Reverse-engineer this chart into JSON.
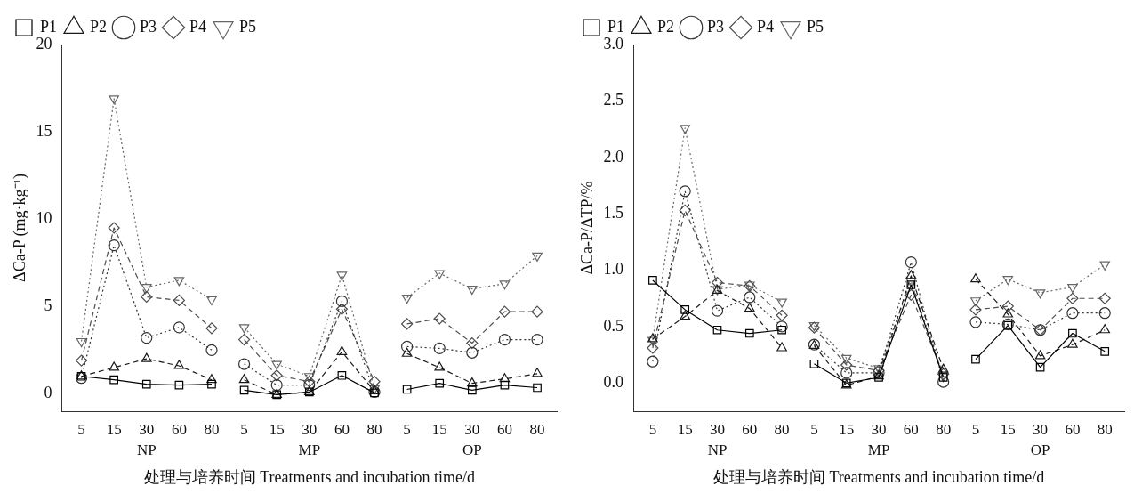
{
  "chart_data": [
    {
      "type": "line",
      "ylabel": "ΔCa-P (mg·kg⁻¹)",
      "xlabel": "处理与培养时间 Treatments and incubation time/d",
      "categories": [
        "5",
        "15",
        "30",
        "60",
        "80",
        "5",
        "15",
        "30",
        "60",
        "80",
        "5",
        "15",
        "30",
        "60",
        "80"
      ],
      "annotations": [
        "NP",
        "MP",
        "OP"
      ],
      "ylim": [
        -1,
        20
      ],
      "yticks": [
        0,
        5,
        10,
        15,
        20
      ],
      "legend": "top",
      "grid": false,
      "series": [
        {
          "name": "P1",
          "color": "#000000",
          "marker": "square",
          "line_style": "solid",
          "values": [
            1.0,
            0.8,
            0.55,
            0.5,
            0.55,
            0.2,
            -0.05,
            0.1,
            1.05,
            0.05,
            0.25,
            0.6,
            0.2,
            0.5,
            0.35
          ]
        },
        {
          "name": "P2",
          "color": "#1a1a1a",
          "marker": "triangle",
          "line_style": "dashed",
          "values": [
            1.0,
            1.5,
            2.0,
            1.6,
            0.8,
            0.8,
            -0.05,
            0.1,
            2.4,
            0.15,
            2.3,
            1.5,
            0.6,
            0.85,
            1.15
          ]
        },
        {
          "name": "P3",
          "color": "#333333",
          "marker": "circle",
          "line_style": "dotted",
          "values": [
            0.9,
            8.5,
            3.2,
            3.8,
            2.5,
            1.7,
            0.5,
            0.5,
            5.3,
            0.1,
            2.7,
            2.6,
            2.35,
            3.1,
            3.1
          ]
        },
        {
          "name": "P4",
          "color": "#4d4d4d",
          "marker": "diamond",
          "line_style": "dashed",
          "values": [
            1.9,
            9.5,
            5.55,
            5.35,
            3.75,
            3.1,
            1.05,
            0.7,
            4.85,
            0.7,
            4.0,
            4.3,
            2.9,
            4.7,
            4.7
          ]
        },
        {
          "name": "P5",
          "color": "#666666",
          "marker": "triangle-down",
          "line_style": "dotted",
          "values": [
            3.0,
            16.9,
            6.1,
            6.5,
            5.4,
            3.8,
            1.7,
            1.0,
            6.8,
            0.3,
            5.5,
            6.9,
            6.0,
            6.3,
            7.9
          ]
        }
      ]
    },
    {
      "type": "line",
      "ylabel": "ΔCa-P/ΔTP/%",
      "xlabel": "处理与培养时间 Treatments and incubation time/d",
      "categories": [
        "5",
        "15",
        "30",
        "60",
        "80",
        "5",
        "15",
        "30",
        "60",
        "80",
        "5",
        "15",
        "30",
        "60",
        "80"
      ],
      "annotations": [
        "NP",
        "MP",
        "OP"
      ],
      "ylim": [
        -0.25,
        3
      ],
      "yticks": [
        {
          "value": 0,
          "label": "0.0"
        },
        0.5,
        {
          "value": 1,
          "label": "1.0"
        },
        1.5,
        {
          "value": 2,
          "label": "2.0"
        },
        2.5,
        {
          "value": 3,
          "label": "3.0"
        }
      ],
      "legend": "top",
      "grid": false,
      "series": [
        {
          "name": "P1",
          "color": "#000000",
          "marker": "square",
          "line_style": "solid",
          "values": [
            0.91,
            0.65,
            0.47,
            0.44,
            0.47,
            0.17,
            0.0,
            0.05,
            0.87,
            0.05,
            0.21,
            0.51,
            0.14,
            0.44,
            0.28
          ]
        },
        {
          "name": "P2",
          "color": "#1a1a1a",
          "marker": "triangle",
          "line_style": "dashed",
          "values": [
            0.39,
            0.59,
            0.82,
            0.66,
            0.31,
            0.33,
            -0.02,
            0.06,
            0.95,
            0.12,
            0.92,
            0.61,
            0.24,
            0.34,
            0.47
          ]
        },
        {
          "name": "P3",
          "color": "#333333",
          "marker": "circle",
          "line_style": "dotted",
          "values": [
            0.19,
            1.7,
            0.64,
            0.76,
            0.5,
            0.34,
            0.09,
            0.09,
            1.07,
            0.01,
            0.54,
            0.52,
            0.47,
            0.62,
            0.62
          ]
        },
        {
          "name": "P4",
          "color": "#4d4d4d",
          "marker": "diamond",
          "line_style": "dashed",
          "values": [
            0.31,
            1.53,
            0.89,
            0.86,
            0.6,
            0.49,
            0.16,
            0.11,
            0.78,
            0.08,
            0.65,
            0.68,
            0.47,
            0.75,
            0.75
          ]
        },
        {
          "name": "P5",
          "color": "#666666",
          "marker": "triangle-down",
          "line_style": "dotted",
          "values": [
            0.38,
            2.26,
            0.83,
            0.87,
            0.72,
            0.51,
            0.22,
            0.13,
            0.9,
            0.06,
            0.73,
            0.92,
            0.8,
            0.85,
            1.05
          ]
        }
      ]
    }
  ]
}
